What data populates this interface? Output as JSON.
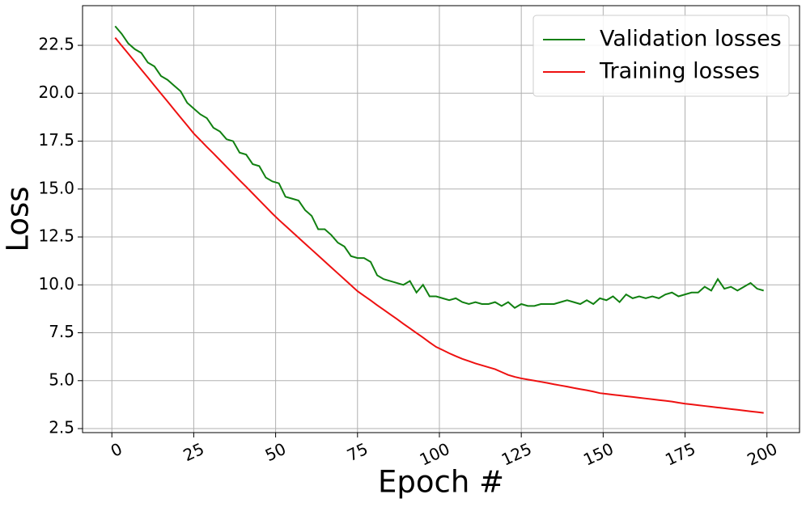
{
  "chart_data": {
    "type": "line",
    "xlabel": "Epoch #",
    "ylabel": "Loss",
    "x": [
      1,
      3,
      5,
      7,
      9,
      11,
      13,
      15,
      17,
      19,
      21,
      23,
      25,
      27,
      29,
      31,
      33,
      35,
      37,
      39,
      41,
      43,
      45,
      47,
      49,
      51,
      53,
      55,
      57,
      59,
      61,
      63,
      65,
      67,
      69,
      71,
      73,
      75,
      77,
      79,
      81,
      83,
      85,
      87,
      89,
      91,
      93,
      95,
      97,
      99,
      101,
      103,
      105,
      107,
      109,
      111,
      113,
      115,
      117,
      119,
      121,
      123,
      125,
      127,
      129,
      131,
      133,
      135,
      137,
      139,
      141,
      143,
      145,
      147,
      149,
      151,
      153,
      155,
      157,
      159,
      161,
      163,
      165,
      167,
      169,
      171,
      173,
      175,
      177,
      179,
      181,
      183,
      185,
      187,
      189,
      191,
      193,
      195,
      197,
      199
    ],
    "series": [
      {
        "name": "Validation losses",
        "color": "#118011",
        "values": [
          23.5,
          23.1,
          22.6,
          22.3,
          22.1,
          21.6,
          21.4,
          20.9,
          20.7,
          20.4,
          20.1,
          19.5,
          19.2,
          18.9,
          18.7,
          18.2,
          18.0,
          17.6,
          17.5,
          16.9,
          16.8,
          16.3,
          16.2,
          15.6,
          15.4,
          15.3,
          14.6,
          14.5,
          14.4,
          13.9,
          13.6,
          12.9,
          12.9,
          12.6,
          12.2,
          12.0,
          11.5,
          11.4,
          11.4,
          11.2,
          10.5,
          10.3,
          10.2,
          10.1,
          10.0,
          10.2,
          9.6,
          10.0,
          9.4,
          9.4,
          9.3,
          9.2,
          9.3,
          9.1,
          9.0,
          9.1,
          9.0,
          9.0,
          9.1,
          8.9,
          9.1,
          8.8,
          9.0,
          8.9,
          8.9,
          9.0,
          9.0,
          9.0,
          9.1,
          9.2,
          9.1,
          9.0,
          9.2,
          9.0,
          9.3,
          9.2,
          9.4,
          9.1,
          9.5,
          9.3,
          9.4,
          9.3,
          9.4,
          9.3,
          9.5,
          9.6,
          9.4,
          9.5,
          9.6,
          9.6,
          9.9,
          9.7,
          10.3,
          9.8,
          9.9,
          9.7,
          9.9,
          10.1,
          9.8,
          9.7
        ]
      },
      {
        "name": "Training losses",
        "color": "#ee1111",
        "values": [
          22.9,
          22.48,
          22.07,
          21.65,
          21.23,
          20.82,
          20.4,
          19.98,
          19.57,
          19.15,
          18.73,
          18.32,
          17.9,
          17.55,
          17.2,
          16.86,
          16.51,
          16.16,
          15.81,
          15.46,
          15.12,
          14.77,
          14.42,
          14.07,
          13.72,
          13.39,
          13.08,
          12.77,
          12.46,
          12.15,
          11.84,
          11.53,
          11.22,
          10.91,
          10.6,
          10.29,
          9.98,
          9.67,
          9.43,
          9.19,
          8.94,
          8.7,
          8.46,
          8.22,
          7.97,
          7.73,
          7.49,
          7.25,
          7.0,
          6.76,
          6.6,
          6.43,
          6.28,
          6.14,
          6.02,
          5.9,
          5.8,
          5.7,
          5.6,
          5.45,
          5.3,
          5.2,
          5.12,
          5.06,
          5.0,
          4.94,
          4.88,
          4.81,
          4.75,
          4.69,
          4.62,
          4.56,
          4.5,
          4.43,
          4.35,
          4.31,
          4.27,
          4.23,
          4.19,
          4.15,
          4.11,
          4.07,
          4.03,
          3.99,
          3.95,
          3.91,
          3.85,
          3.8,
          3.76,
          3.72,
          3.68,
          3.64,
          3.6,
          3.56,
          3.52,
          3.48,
          3.44,
          3.4,
          3.36,
          3.32
        ]
      }
    ],
    "xlim": [
      -8.95,
      209.95
    ],
    "ylim": [
      2.29,
      24.57
    ],
    "xticks": [
      0,
      25,
      50,
      75,
      100,
      125,
      150,
      175,
      200
    ],
    "yticks": [
      2.5,
      {
        "value": 5,
        "label": "5.0"
      },
      7.5,
      {
        "value": 10,
        "label": "10.0"
      },
      12.5,
      {
        "value": 15,
        "label": "15.0"
      },
      17.5,
      {
        "value": 20,
        "label": "20.0"
      },
      22.5
    ],
    "grid": true,
    "legend": "upper right"
  }
}
